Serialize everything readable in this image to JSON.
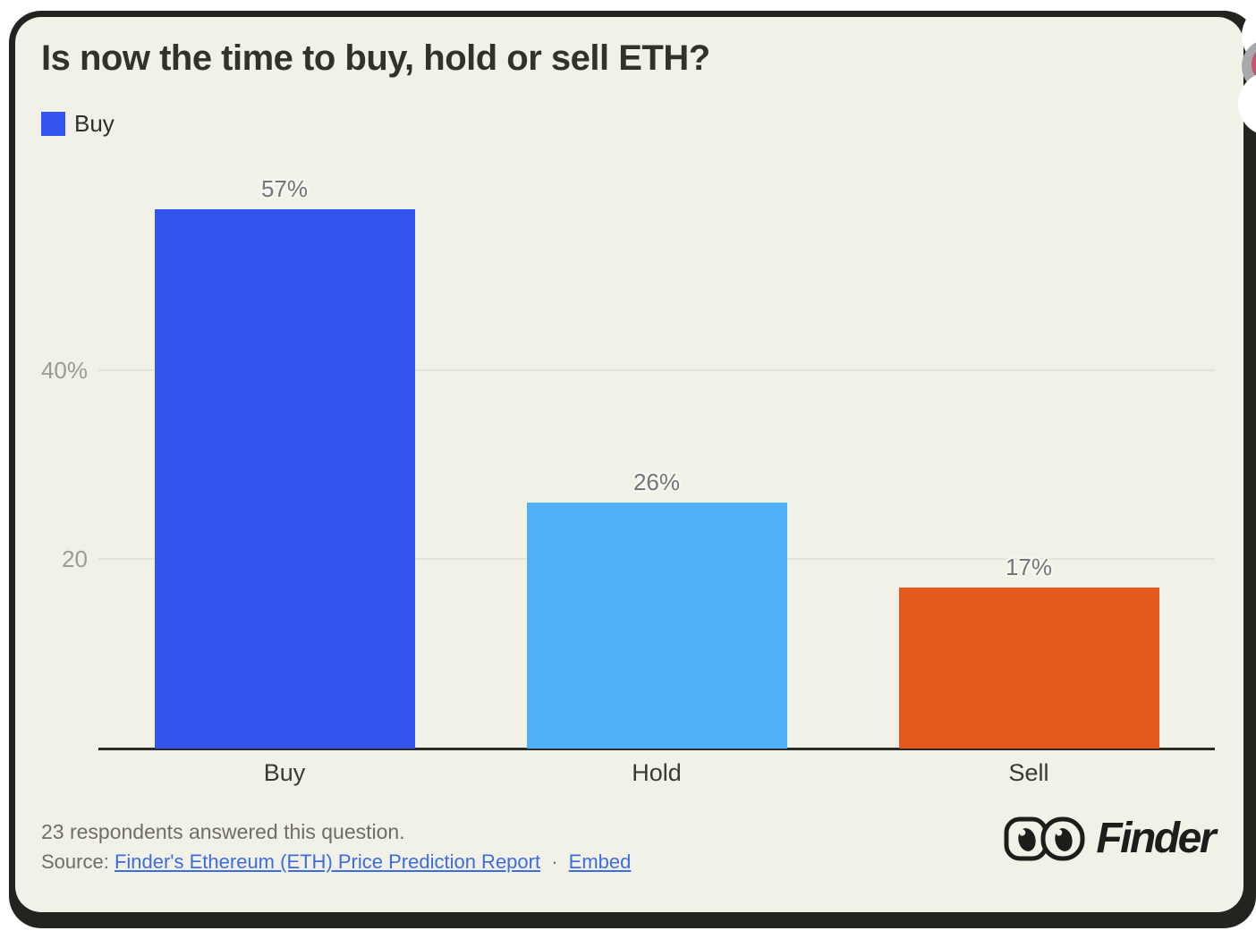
{
  "card": {
    "title": "Is now the time to buy, hold or sell ETH?",
    "legend": [
      {
        "label": "Buy",
        "color": "#3354f0"
      }
    ]
  },
  "chart_data": {
    "type": "bar",
    "title": "Is now the time to buy, hold or sell ETH?",
    "categories": [
      "Buy",
      "Hold",
      "Sell"
    ],
    "values": [
      57,
      26,
      17
    ],
    "value_labels": [
      "57%",
      "26%",
      "17%"
    ],
    "bar_colors": [
      "#3354f0",
      "#4fb0f5",
      "#e5591f"
    ],
    "xlabel": "",
    "ylabel": "",
    "ylim": [
      0,
      57
    ],
    "yticks": [
      {
        "value": 20,
        "label": "20"
      },
      {
        "value": 40,
        "label": "40%"
      }
    ],
    "grid": true,
    "legend_position": "top-left",
    "annotation": "23 respondents answered this question."
  },
  "footer": {
    "respondents": "23 respondents answered this question.",
    "source_prefix": "Source:",
    "source_link": "Finder's Ethereum (ETH) Price Prediction Report",
    "separator": "·",
    "embed_link": "Embed",
    "logo_text": "Finder"
  },
  "colors": {
    "card_background": "#f2f1e7",
    "card_border": "#232320",
    "page_background": "#ffffff",
    "gridline": "#e4e3d8",
    "axis": "#2b2b27",
    "ytick_text": "#9b9b97",
    "value_label_text": "#75757a",
    "xtick_text": "#3a3a34",
    "footer_text": "#6f6d68",
    "link": "#3c6de0",
    "logo_ink": "#1d1d1b",
    "overlay_gray": "#a9a9ad",
    "overlay_crimson": "#c25672",
    "overlay_white": "#ffffff"
  }
}
